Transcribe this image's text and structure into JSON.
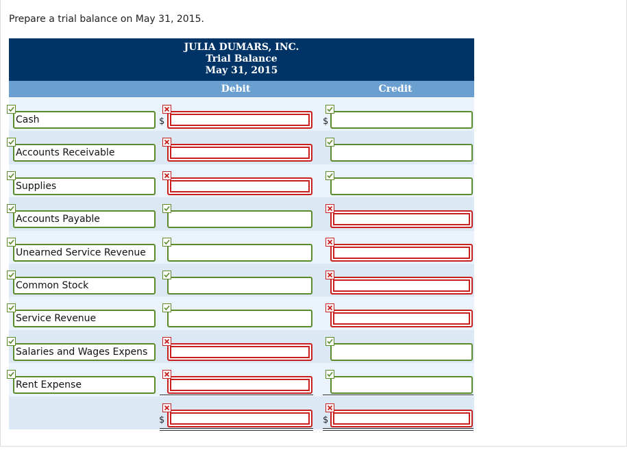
{
  "instruction": "Prepare a trial balance on May 31, 2015.",
  "header": {
    "company": "JULIA DUMARS, INC.",
    "statement": "Trial Balance",
    "date": "May 31, 2015"
  },
  "table": {
    "columns": [
      "Debit",
      "Credit"
    ],
    "currency": "$",
    "rows": [
      {
        "label": "Cash",
        "debit_correct": false,
        "credit_correct": true,
        "currency": true
      },
      {
        "label": "Accounts Receivable",
        "debit_correct": false,
        "credit_correct": true,
        "currency": false
      },
      {
        "label": "Supplies",
        "debit_correct": false,
        "credit_correct": true,
        "currency": false
      },
      {
        "label": "Accounts Payable",
        "debit_correct": true,
        "credit_correct": false,
        "currency": false
      },
      {
        "label": "Unearned Service Revenue",
        "debit_correct": true,
        "credit_correct": false,
        "currency": false
      },
      {
        "label": "Common Stock",
        "debit_correct": true,
        "credit_correct": false,
        "currency": false
      },
      {
        "label": "Service Revenue",
        "debit_correct": true,
        "credit_correct": false,
        "currency": false
      },
      {
        "label": "Salaries and Wages Expens",
        "debit_correct": false,
        "credit_correct": true,
        "currency": false
      },
      {
        "label": "Rent Expense",
        "debit_correct": false,
        "credit_correct": true,
        "currency": false
      }
    ],
    "total": {
      "debit_correct": false,
      "credit_correct": false
    }
  }
}
